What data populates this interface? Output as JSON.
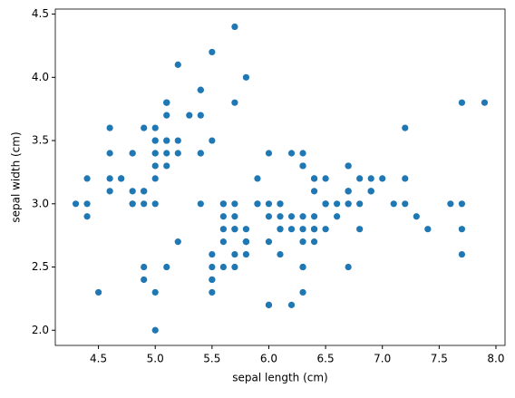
{
  "chart_data": {
    "type": "scatter",
    "x_label": "sepal length (cm)",
    "y_label": "sepal width (cm)",
    "color": "#1f77b4",
    "xlim": [
      4.12,
      8.08
    ],
    "ylim": [
      1.88,
      4.54
    ],
    "xticks": [
      {
        "value": 4.5,
        "label": "4.5"
      },
      {
        "value": 5,
        "label": "5.0"
      },
      {
        "value": 5.5,
        "label": "5.5"
      },
      {
        "value": 6,
        "label": "6.0"
      },
      {
        "value": 6.5,
        "label": "6.5"
      },
      {
        "value": 7,
        "label": "7.0"
      },
      {
        "value": 7.5,
        "label": "7.5"
      },
      {
        "value": 8,
        "label": "8.0"
      }
    ],
    "yticks": [
      {
        "value": 2,
        "label": "2.0"
      },
      {
        "value": 2.5,
        "label": "2.5"
      },
      {
        "value": 3,
        "label": "3.0"
      },
      {
        "value": 3.5,
        "label": "3.5"
      },
      {
        "value": 4,
        "label": "4.0"
      },
      {
        "value": 4.5,
        "label": "4.5"
      }
    ],
    "x": [
      5.1,
      4.9,
      4.7,
      4.6,
      5.0,
      5.4,
      4.6,
      5.0,
      4.4,
      4.9,
      5.4,
      4.8,
      4.8,
      4.3,
      5.8,
      5.7,
      5.4,
      5.1,
      5.7,
      5.1,
      5.4,
      5.1,
      4.6,
      5.1,
      4.8,
      5.0,
      5.0,
      5.2,
      5.2,
      4.7,
      4.8,
      5.4,
      5.2,
      5.5,
      4.9,
      5.0,
      5.5,
      4.9,
      4.4,
      5.1,
      5.0,
      4.5,
      4.4,
      5.0,
      5.1,
      4.8,
      5.1,
      4.6,
      5.3,
      5.0,
      7.0,
      6.4,
      6.9,
      5.5,
      6.5,
      5.7,
      6.3,
      4.9,
      6.6,
      5.2,
      5.0,
      5.9,
      6.0,
      6.1,
      5.6,
      6.7,
      5.6,
      5.8,
      6.2,
      5.6,
      5.9,
      6.1,
      6.3,
      6.1,
      6.4,
      6.6,
      6.8,
      6.7,
      6.0,
      5.7,
      5.5,
      5.5,
      5.8,
      6.0,
      5.4,
      6.0,
      6.7,
      6.3,
      5.6,
      5.5,
      5.5,
      6.1,
      5.8,
      5.0,
      5.6,
      5.7,
      5.7,
      6.2,
      5.1,
      5.7,
      6.3,
      5.8,
      7.1,
      6.3,
      6.5,
      7.6,
      4.9,
      7.3,
      6.7,
      7.2,
      6.5,
      6.4,
      6.8,
      5.7,
      5.8,
      6.4,
      6.5,
      7.7,
      7.7,
      6.0,
      6.9,
      5.6,
      7.7,
      6.3,
      6.7,
      7.2,
      6.2,
      6.1,
      6.4,
      7.2,
      7.4,
      7.9,
      6.4,
      6.3,
      6.1,
      7.7,
      6.3,
      6.4,
      6.0,
      6.9,
      6.7,
      6.9,
      5.8,
      6.8,
      6.7,
      6.7,
      6.3,
      6.5,
      6.2,
      5.9
    ],
    "values": [
      3.5,
      3.0,
      3.2,
      3.1,
      3.6,
      3.9,
      3.4,
      3.4,
      2.9,
      3.1,
      3.7,
      3.4,
      3.0,
      3.0,
      4.0,
      4.4,
      3.9,
      3.5,
      3.8,
      3.8,
      3.4,
      3.7,
      3.6,
      3.3,
      3.4,
      3.0,
      3.4,
      3.5,
      3.4,
      3.2,
      3.1,
      3.4,
      4.1,
      4.2,
      3.1,
      3.2,
      3.5,
      3.6,
      3.0,
      3.4,
      3.5,
      2.3,
      3.2,
      3.5,
      3.8,
      3.0,
      3.8,
      3.2,
      3.7,
      3.3,
      3.2,
      3.2,
      3.1,
      2.3,
      2.8,
      2.8,
      3.3,
      2.4,
      2.9,
      2.7,
      2.0,
      3.0,
      2.2,
      2.9,
      2.9,
      3.1,
      3.0,
      2.7,
      2.2,
      2.5,
      3.2,
      2.8,
      2.5,
      2.8,
      2.9,
      3.0,
      2.8,
      3.0,
      2.9,
      2.6,
      2.4,
      2.4,
      2.7,
      2.7,
      3.0,
      3.4,
      3.1,
      2.3,
      3.0,
      2.5,
      2.6,
      3.0,
      2.6,
      2.3,
      2.7,
      3.0,
      2.9,
      2.9,
      2.5,
      2.8,
      3.3,
      2.7,
      3.0,
      2.9,
      3.0,
      3.0,
      2.5,
      2.9,
      2.5,
      3.6,
      3.2,
      2.7,
      3.0,
      2.5,
      2.8,
      3.2,
      3.0,
      3.8,
      2.6,
      2.2,
      3.2,
      2.8,
      2.8,
      2.7,
      3.3,
      3.2,
      2.8,
      3.0,
      2.8,
      3.0,
      2.8,
      3.8,
      2.8,
      2.8,
      2.6,
      3.0,
      3.4,
      3.1,
      3.0,
      3.1,
      3.1,
      3.1,
      2.7,
      3.2,
      3.3,
      3.0,
      2.5,
      3.0,
      3.4,
      3.0
    ]
  }
}
